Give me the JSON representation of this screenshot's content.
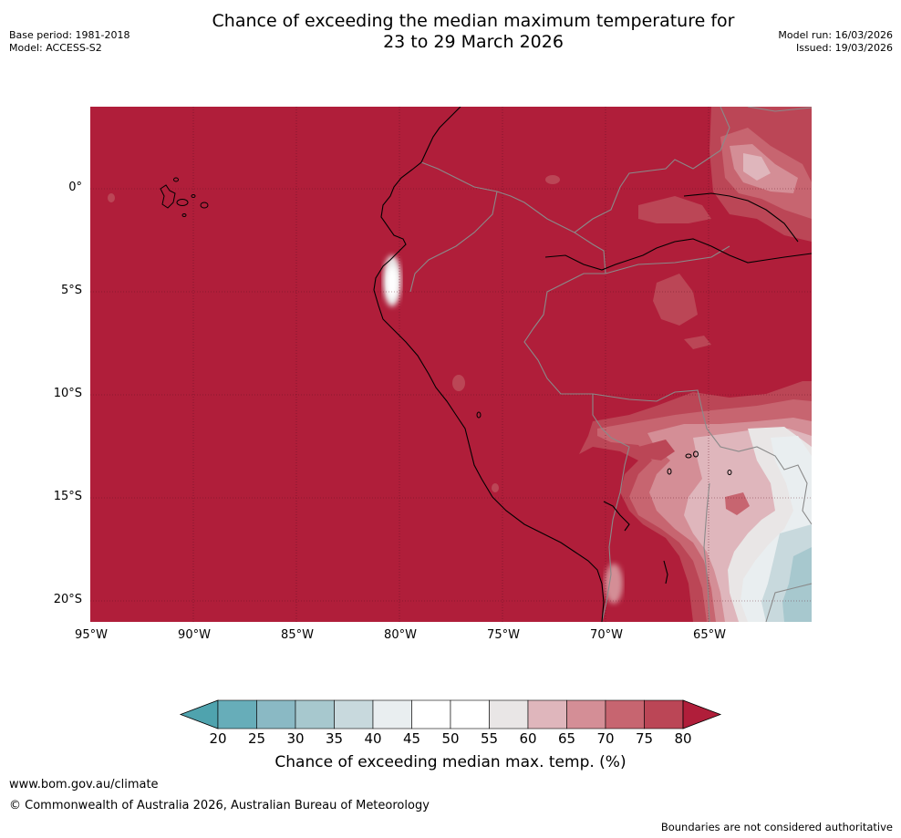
{
  "title_line1": "Chance of exceeding the median maximum temperature for",
  "title_line2": "23 to 29 March 2026",
  "meta_left": {
    "base_period": "Base period: 1981-2018",
    "model": "Model: ACCESS-S2"
  },
  "meta_right": {
    "model_run": "Model run: 16/03/2026",
    "issued": "Issued: 19/03/2026"
  },
  "map": {
    "lat_labels": [
      "0°",
      "5°S",
      "10°S",
      "15°S",
      "20°S"
    ],
    "lon_labels": [
      "95°W",
      "90°W",
      "85°W",
      "80°W",
      "75°W",
      "70°W",
      "65°W"
    ]
  },
  "colorbar": {
    "ticks": [
      "20",
      "25",
      "30",
      "35",
      "40",
      "45",
      "50",
      "55",
      "60",
      "65",
      "70",
      "75",
      "80"
    ],
    "colors": [
      "#67adb9",
      "#8ab9c4",
      "#a7c8ce",
      "#c8d9dd",
      "#e9eef0",
      "#ffffff",
      "#ffffff",
      "#e9e6e6",
      "#dfb6bc",
      "#d48e96",
      "#c76570",
      "#bb4656",
      "#b01e3a"
    ],
    "under_color": "#4fa3ae",
    "over_color": "#b01e3a",
    "label": "Chance of exceeding median max. temp. (%)"
  },
  "footer": {
    "url": "www.bom.gov.au/climate",
    "copyright": "© Commonwealth of Australia 2026, Australian Bureau of Meteorology",
    "note": "Boundaries are not considered authoritative"
  }
}
